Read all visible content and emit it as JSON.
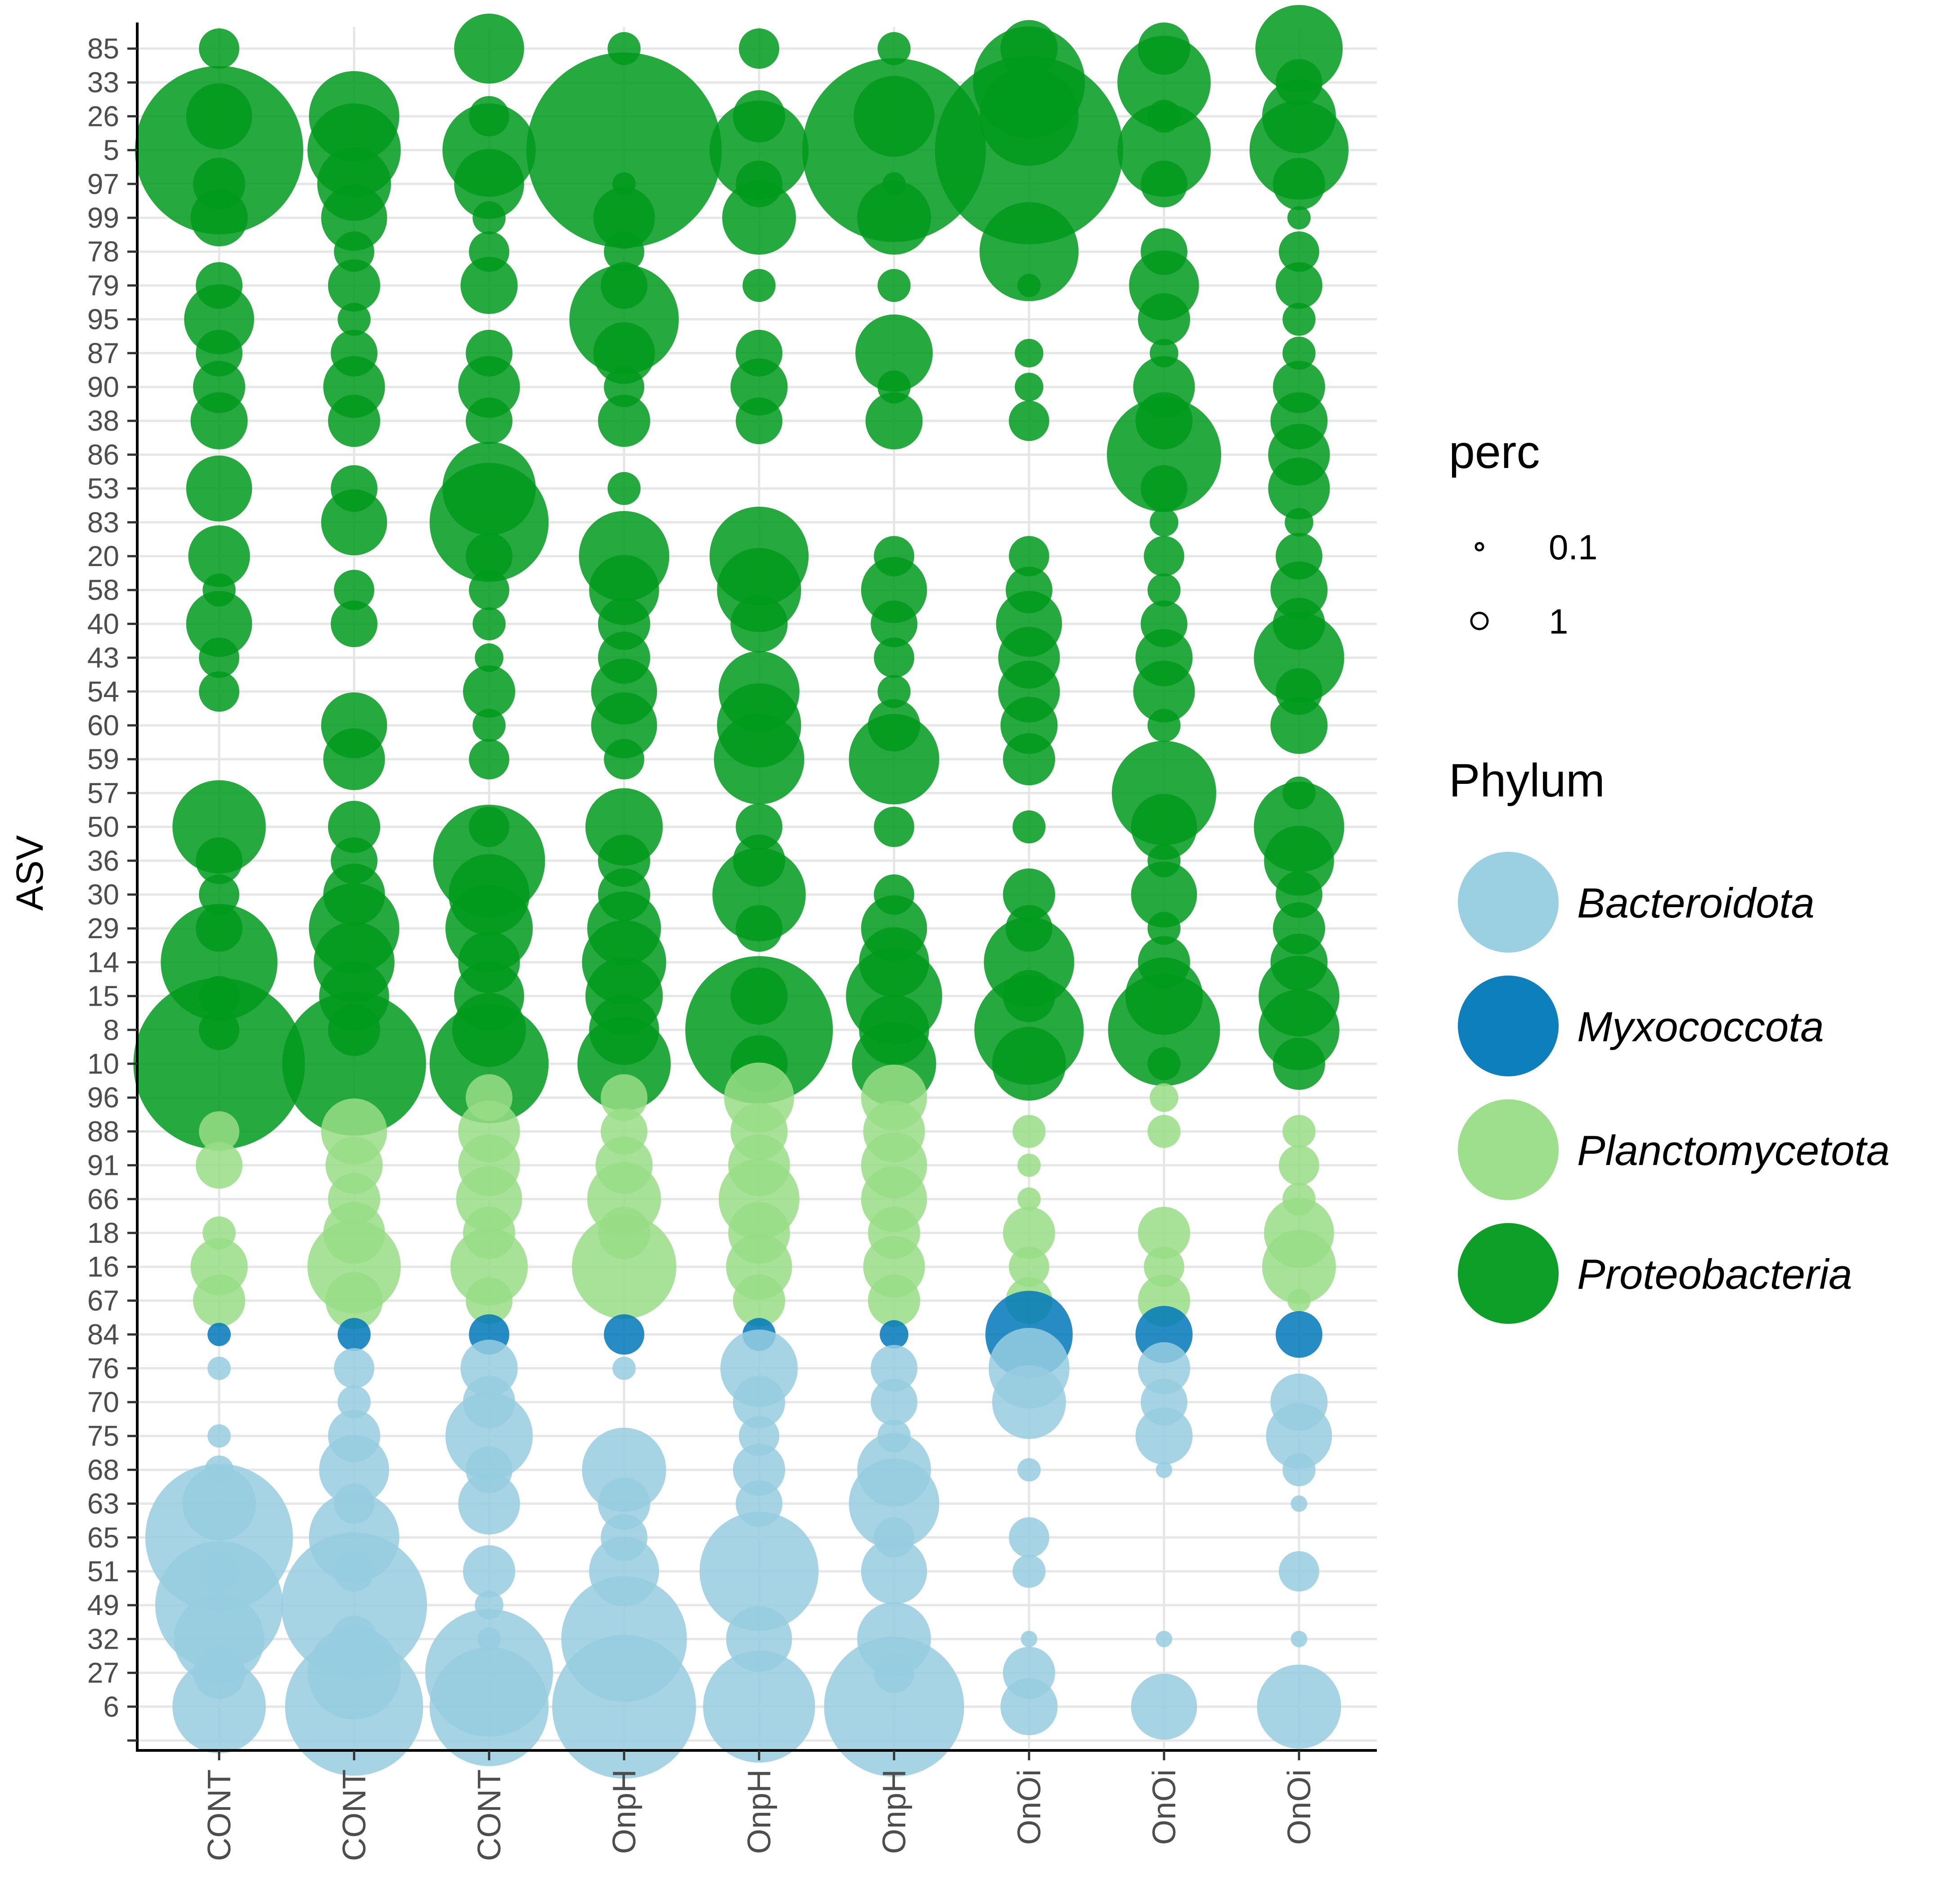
{
  "chart_data": {
    "type": "scatter",
    "subtype": "bubble",
    "xlabel": "",
    "ylabel": "ASV",
    "samples": [
      "CONT",
      "CONT",
      "CONT",
      "OnpH",
      "OnpH",
      "OnpH",
      "OnOi",
      "OnOi",
      "OnOi"
    ],
    "rows": [
      {
        "asv": "85",
        "phylum": "Proteobacteria",
        "values": [
          0.3,
          null,
          0.9,
          0.2,
          0.3,
          0.2,
          0.6,
          0.5,
          1.4
        ]
      },
      {
        "asv": "33",
        "phylum": "Proteobacteria",
        "values": [
          null,
          null,
          null,
          null,
          null,
          null,
          2.3,
          1.6,
          0.4
        ]
      },
      {
        "asv": "26",
        "phylum": "Proteobacteria",
        "values": [
          0.8,
          1.5,
          0.3,
          null,
          0.5,
          1.2,
          1.8,
          0.2,
          1.0
        ]
      },
      {
        "asv": "5",
        "phylum": "Proteobacteria",
        "values": [
          5.2,
          1.6,
          1.6,
          7.0,
          1.8,
          6.2,
          6.5,
          1.6,
          1.8
        ]
      },
      {
        "asv": "97",
        "phylum": "Proteobacteria",
        "values": [
          0.5,
          1.0,
          0.9,
          0.1,
          0.4,
          0.1,
          null,
          0.4,
          0.5
        ]
      },
      {
        "asv": "99",
        "phylum": "Proteobacteria",
        "values": [
          0.6,
          0.8,
          0.2,
          0.7,
          1.0,
          1.0,
          null,
          null,
          0.1
        ]
      },
      {
        "asv": "78",
        "phylum": "Proteobacteria",
        "values": [
          null,
          0.3,
          0.3,
          0.3,
          null,
          null,
          1.8,
          0.4,
          0.3
        ]
      },
      {
        "asv": "79",
        "phylum": "Proteobacteria",
        "values": [
          0.4,
          0.5,
          0.6,
          0.4,
          0.2,
          0.2,
          0.1,
          0.9,
          0.4
        ]
      },
      {
        "asv": "95",
        "phylum": "Proteobacteria",
        "values": [
          0.9,
          0.2,
          null,
          2.2,
          null,
          null,
          null,
          0.5,
          0.2
        ]
      },
      {
        "asv": "87",
        "phylum": "Proteobacteria",
        "values": [
          0.4,
          0.4,
          0.4,
          0.7,
          0.4,
          1.1,
          0.15,
          0.15,
          0.2
        ]
      },
      {
        "asv": "90",
        "phylum": "Proteobacteria",
        "values": [
          0.5,
          0.7,
          0.7,
          0.3,
          0.6,
          0.2,
          0.15,
          0.7,
          0.5
        ]
      },
      {
        "asv": "38",
        "phylum": "Proteobacteria",
        "values": [
          0.6,
          0.5,
          0.4,
          0.5,
          0.4,
          0.6,
          0.3,
          0.6,
          0.6
        ]
      },
      {
        "asv": "86",
        "phylum": "Proteobacteria",
        "values": [
          null,
          null,
          null,
          null,
          null,
          null,
          null,
          2.4,
          0.7
        ]
      },
      {
        "asv": "53",
        "phylum": "Proteobacteria",
        "values": [
          0.8,
          0.4,
          1.6,
          0.2,
          null,
          null,
          null,
          0.4,
          0.7
        ]
      },
      {
        "asv": "83",
        "phylum": "Proteobacteria",
        "values": [
          null,
          0.8,
          2.6,
          null,
          null,
          null,
          null,
          0.15,
          0.15
        ]
      },
      {
        "asv": "20",
        "phylum": "Proteobacteria",
        "values": [
          0.7,
          null,
          0.4,
          1.5,
          1.8,
          0.3,
          0.3,
          0.3,
          0.4
        ]
      },
      {
        "asv": "58",
        "phylum": "Proteobacteria",
        "values": [
          0.2,
          0.3,
          0.3,
          0.9,
          1.3,
          0.8,
          0.4,
          0.2,
          0.6
        ]
      },
      {
        "asv": "40",
        "phylum": "Proteobacteria",
        "values": [
          0.8,
          0.4,
          0.2,
          0.5,
          0.6,
          0.4,
          0.8,
          0.4,
          0.5
        ]
      },
      {
        "asv": "43",
        "phylum": "Proteobacteria",
        "values": [
          0.3,
          null,
          0.15,
          0.5,
          null,
          0.3,
          0.7,
          0.6,
          1.5
        ]
      },
      {
        "asv": "54",
        "phylum": "Proteobacteria",
        "values": [
          0.3,
          null,
          0.5,
          0.8,
          1.2,
          0.2,
          0.7,
          0.7,
          0.4
        ]
      },
      {
        "asv": "60",
        "phylum": "Proteobacteria",
        "values": [
          null,
          0.8,
          0.2,
          0.8,
          1.3,
          0.5,
          0.6,
          0.2,
          0.6
        ]
      },
      {
        "asv": "59",
        "phylum": "Proteobacteria",
        "values": [
          null,
          0.7,
          0.3,
          0.3,
          1.5,
          1.5,
          0.5,
          null,
          null
        ]
      },
      {
        "asv": "57",
        "phylum": "Proteobacteria",
        "values": [
          null,
          null,
          null,
          null,
          null,
          null,
          null,
          2.0,
          0.2
        ]
      },
      {
        "asv": "50",
        "phylum": "Proteobacteria",
        "values": [
          1.6,
          0.5,
          0.3,
          1.1,
          0.4,
          0.3,
          0.2,
          0.8,
          1.5
        ]
      },
      {
        "asv": "36",
        "phylum": "Proteobacteria",
        "values": [
          0.4,
          0.4,
          2.3,
          0.5,
          0.5,
          null,
          null,
          0.2,
          0.9
        ]
      },
      {
        "asv": "30",
        "phylum": "Proteobacteria",
        "values": [
          0.3,
          0.7,
          1.2,
          0.5,
          1.6,
          0.3,
          0.5,
          0.8,
          0.4
        ]
      },
      {
        "asv": "29",
        "phylum": "Proteobacteria",
        "values": [
          0.4,
          1.5,
          1.4,
          1.0,
          0.4,
          0.8,
          0.4,
          0.2,
          0.5
        ]
      },
      {
        "asv": "14",
        "phylum": "Proteobacteria",
        "values": [
          2.5,
          1.2,
          0.7,
          1.3,
          null,
          0.9,
          1.5,
          0.5,
          0.6
        ]
      },
      {
        "asv": "15",
        "phylum": "Proteobacteria",
        "values": [
          0.3,
          0.9,
          0.9,
          1.1,
          0.6,
          1.7,
          0.5,
          1.1,
          1.2
        ]
      },
      {
        "asv": "8",
        "phylum": "Proteobacteria",
        "values": [
          0.3,
          0.5,
          1.0,
          0.9,
          4.0,
          0.9,
          2.2,
          2.3,
          1.2
        ]
      },
      {
        "asv": "10",
        "phylum": "Proteobacteria",
        "values": [
          5.4,
          3.8,
          2.6,
          1.6,
          0.6,
          1.3,
          1.0,
          0.2,
          0.5
        ]
      },
      {
        "asv": "96",
        "phylum": "Planctomycetota",
        "values": [
          null,
          null,
          0.4,
          0.4,
          0.9,
          0.8,
          null,
          0.15,
          null
        ]
      },
      {
        "asv": "88",
        "phylum": "Planctomycetota",
        "values": [
          0.3,
          0.8,
          0.7,
          0.4,
          0.6,
          0.7,
          0.2,
          0.2,
          0.2
        ]
      },
      {
        "asv": "91",
        "phylum": "Planctomycetota",
        "values": [
          0.4,
          0.6,
          0.7,
          0.6,
          0.7,
          0.8,
          0.1,
          null,
          0.3
        ]
      },
      {
        "asv": "66",
        "phylum": "Planctomycetota",
        "values": [
          null,
          0.5,
          0.8,
          1.0,
          1.2,
          0.8,
          0.1,
          null,
          0.2
        ]
      },
      {
        "asv": "18",
        "phylum": "Planctomycetota",
        "values": [
          0.2,
          0.7,
          0.5,
          0.5,
          0.7,
          0.5,
          0.5,
          0.5,
          0.9
        ]
      },
      {
        "asv": "16",
        "phylum": "Planctomycetota",
        "values": [
          0.6,
          1.6,
          1.1,
          2.0,
          0.8,
          0.7,
          0.3,
          0.3,
          1.0
        ]
      },
      {
        "asv": "67",
        "phylum": "Planctomycetota",
        "values": [
          0.5,
          0.6,
          0.4,
          null,
          0.5,
          0.5,
          0.4,
          0.5,
          0.1
        ]
      },
      {
        "asv": "84",
        "phylum": "Myxococcota",
        "values": [
          0.1,
          0.2,
          0.3,
          0.3,
          0.2,
          0.15,
          1.4,
          0.6,
          0.4
        ]
      },
      {
        "asv": "76",
        "phylum": "Bacteroidota",
        "values": [
          0.1,
          0.3,
          0.6,
          0.1,
          1.1,
          0.4,
          1.2,
          0.5,
          null
        ]
      },
      {
        "asv": "70",
        "phylum": "Bacteroidota",
        "values": [
          null,
          0.2,
          0.5,
          null,
          0.5,
          0.4,
          1.0,
          0.4,
          0.6
        ]
      },
      {
        "asv": "75",
        "phylum": "Bacteroidota",
        "values": [
          0.1,
          0.5,
          1.4,
          null,
          0.3,
          0.2,
          null,
          0.6,
          0.8
        ]
      },
      {
        "asv": "68",
        "phylum": "Bacteroidota",
        "values": [
          0.15,
          0.9,
          0.4,
          1.3,
          0.5,
          1.0,
          0.1,
          0.05,
          0.2
        ]
      },
      {
        "asv": "63",
        "phylum": "Bacteroidota",
        "values": [
          1.0,
          0.3,
          0.7,
          0.5,
          0.4,
          1.5,
          null,
          null,
          0.05
        ]
      },
      {
        "asv": "65",
        "phylum": "Bacteroidota",
        "values": [
          4.0,
          1.5,
          null,
          0.4,
          null,
          0.3,
          0.3,
          null,
          null
        ]
      },
      {
        "asv": "51",
        "phylum": "Bacteroidota",
        "values": [
          0.3,
          0.3,
          0.5,
          0.9,
          2.6,
          0.8,
          0.2,
          null,
          0.3
        ]
      },
      {
        "asv": "49",
        "phylum": "Bacteroidota",
        "values": [
          3.0,
          3.9,
          0.15,
          null,
          null,
          null,
          null,
          null,
          null
        ]
      },
      {
        "asv": "32",
        "phylum": "Bacteroidota",
        "values": [
          1.5,
          0.4,
          0.1,
          2.9,
          0.8,
          1.0,
          0.05,
          0.05,
          0.05
        ]
      },
      {
        "asv": "27",
        "phylum": "Bacteroidota",
        "values": [
          0.5,
          1.6,
          3.0,
          null,
          null,
          0.3,
          0.5,
          null,
          null
        ]
      },
      {
        "asv": "6",
        "phylum": "Bacteroidota",
        "values": [
          1.6,
          3.5,
          2.6,
          3.8,
          2.3,
          3.6,
          0.6,
          0.8,
          1.3
        ]
      }
    ],
    "size_legend": {
      "title": "perc",
      "entries": [
        {
          "label": "0.1",
          "value": 0.1
        },
        {
          "label": "1",
          "value": 1
        }
      ]
    },
    "color_legend": {
      "title": "Phylum",
      "entries": [
        {
          "label": "Bacteroidota",
          "color": "#96cde1"
        },
        {
          "label": "Myxococcota",
          "color": "#0078b9"
        },
        {
          "label": "Planctomycetota",
          "color": "#98dd86"
        },
        {
          "label": "Proteobacteria",
          "color": "#009a1c"
        }
      ]
    },
    "grid": true,
    "legend_position": "right"
  }
}
